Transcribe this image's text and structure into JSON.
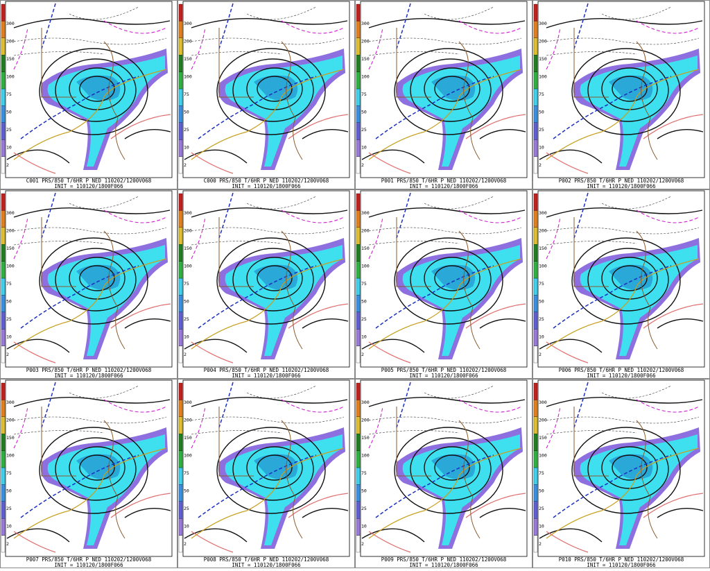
{
  "colorbar_labels": [
    "300",
    "200",
    "150",
    "100",
    "75",
    "50",
    "25",
    "10",
    "2"
  ],
  "panels": [
    {
      "caption": "C001 PRS/850 T/6HR P NED 110202/1200V068",
      "init": "INIT = 110120/1800F066"
    },
    {
      "caption": "C000 PRS/850 T/6HR P NED 110202/1200V068",
      "init": "INIT = 110120/1800F066"
    },
    {
      "caption": "P001 PRS/850 T/6HR P NED 110202/1200V068",
      "init": "INIT = 110120/1800F066"
    },
    {
      "caption": "P002 PRS/850 T/6HR P NED 110202/1200V068",
      "init": "INIT = 110120/1800F066"
    },
    {
      "caption": "P003 PRS/850 T/6HR P NED 110202/1200V068",
      "init": "INIT = 110120/1800F066"
    },
    {
      "caption": "P004 PRS/850 T/6HR P NED 110202/1200V068",
      "init": "INIT = 110120/1800F066"
    },
    {
      "caption": "P005 PRS/850 T/6HR P NED 110202/1200V068",
      "init": "INIT = 110120/1800F066"
    },
    {
      "caption": "P006 PRS/850 T/6HR P NED 110202/1200V068",
      "init": "INIT = 110120/1800F066"
    },
    {
      "caption": "P007 PRS/850 T/6HR P NED 110202/1200V068",
      "init": "INIT = 110120/1800F066"
    },
    {
      "caption": "P008 PRS/850 T/6HR P NED 110202/1200V068",
      "init": "INIT = 110120/1800F066"
    },
    {
      "caption": "P009 PRS/850 T/6HR P NED 110202/1200V068",
      "init": "INIT = 110120/1800F066"
    },
    {
      "caption": "P010 PRS/850 T/6HR P NED 110202/1200V068",
      "init": "INIT = 110120/1800F066"
    }
  ]
}
